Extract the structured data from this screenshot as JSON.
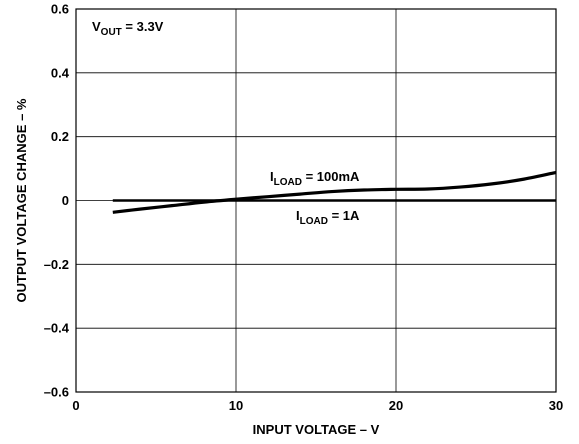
{
  "chart_data": {
    "type": "line",
    "title": "",
    "xlabel": "INPUT VOLTAGE – V",
    "ylabel": "OUTPUT VOLTAGE CHANGE – %",
    "xlim": [
      0,
      30
    ],
    "ylim": [
      -0.6,
      0.6
    ],
    "x_ticks": [
      0,
      10,
      20,
      30
    ],
    "x_tick_labels": [
      "0",
      "10",
      "20",
      "30"
    ],
    "y_ticks": [
      -0.6,
      -0.4,
      -0.2,
      0,
      0.2,
      0.4,
      0.6
    ],
    "y_tick_labels": [
      "–0.6",
      "–0.4",
      "–0.2",
      "0",
      "0.2",
      "0.4",
      "0.6"
    ],
    "grid": true,
    "condition": {
      "main": "V",
      "sub": "OUT",
      "rest": " = 3.3V"
    },
    "series": [
      {
        "name": "I_LOAD = 100mA",
        "label": {
          "main": "I",
          "sub": "LOAD",
          "rest": " = 100mA"
        },
        "x": [
          2.3,
          4,
          6,
          8,
          10,
          12,
          14,
          16,
          18,
          20,
          22,
          24,
          26,
          28,
          30
        ],
        "y": [
          -0.037,
          -0.027,
          -0.016,
          -0.005,
          0.004,
          0.012,
          0.02,
          0.028,
          0.033,
          0.035,
          0.036,
          0.042,
          0.052,
          0.067,
          0.088
        ]
      },
      {
        "name": "I_LOAD = 1A",
        "label": {
          "main": "I",
          "sub": "LOAD",
          "rest": " = 1A"
        },
        "x": [
          2.3,
          30
        ],
        "y": [
          0,
          0
        ]
      }
    ]
  }
}
